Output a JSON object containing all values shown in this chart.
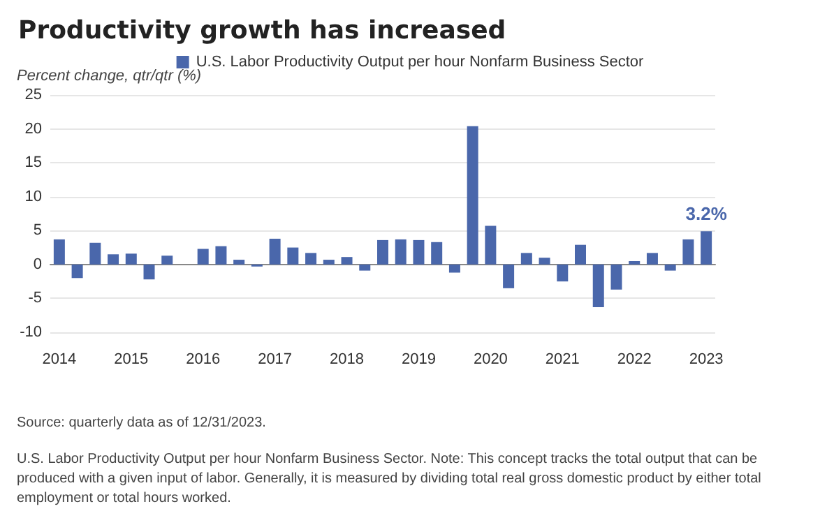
{
  "chart_data": {
    "type": "bar",
    "title": "Productivity growth has increased",
    "ylabel": "Percent change, qtr/qtr (%)",
    "categories": [
      "2014",
      null,
      null,
      null,
      "2015",
      null,
      null,
      null,
      "2016",
      null,
      null,
      null,
      "2017",
      null,
      null,
      null,
      "2018",
      null,
      null,
      null,
      "2019",
      null,
      null,
      null,
      "2020",
      null,
      null,
      null,
      "2021",
      null,
      null,
      null,
      "2022",
      null,
      null,
      null,
      "2023"
    ],
    "series": [
      {
        "name": "U.S. Labor Productivity Output per hour Nonfarm Business Sector",
        "color": "#4a67ab",
        "values": [
          3.7,
          -2.0,
          3.2,
          1.5,
          1.6,
          -2.2,
          1.3,
          0,
          2.3,
          2.7,
          0.7,
          -0.3,
          3.8,
          2.5,
          1.7,
          0.7,
          1.1,
          -0.9,
          3.6,
          3.7,
          3.6,
          3.3,
          -1.2,
          20.4,
          5.7,
          -3.5,
          1.7,
          1.0,
          -2.5,
          2.9,
          -6.3,
          -3.7,
          0.5,
          1.7,
          -0.9,
          3.7,
          4.9
        ]
      }
    ],
    "ylim": [
      -10,
      25
    ],
    "yticks": [
      -10,
      -5,
      0,
      5,
      10,
      15,
      20,
      25
    ],
    "grid": "y",
    "legend": "top",
    "annotations": [
      {
        "text": "3.2%",
        "x": "2023",
        "y": 4.9
      },
      "Source: quarterly data as of 12/31/2023.",
      "U.S. Labor Productivity Output per hour Nonfarm Business Sector. Note: This concept tracks the total output that can be produced with a given input of labor. Generally, it is measured by dividing total real gross domestic product by either total employment or total hours worked."
    ]
  }
}
